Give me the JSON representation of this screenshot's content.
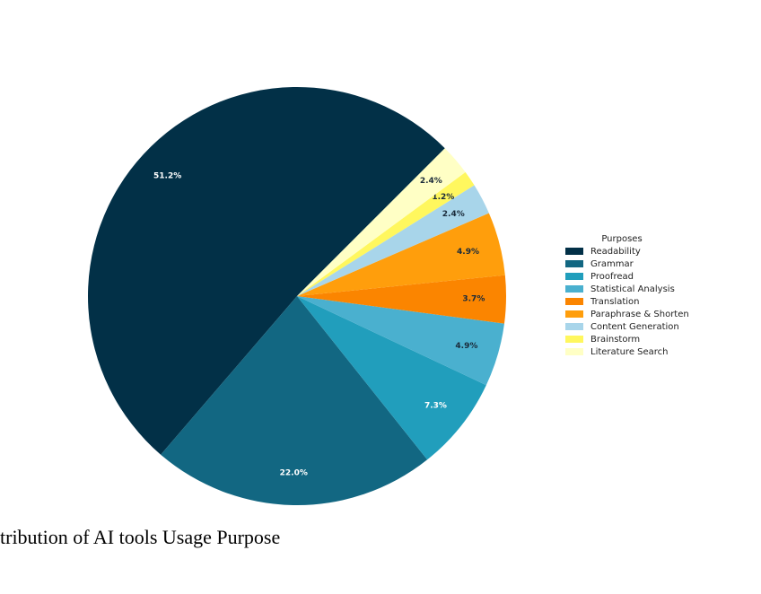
{
  "chart_data": {
    "type": "pie",
    "title": "tribution of AI tools Usage Purpose",
    "legend_title": "Purposes",
    "start_angle": 45,
    "categories": [
      "Readability",
      "Grammar",
      "Proofread",
      "Statistical Analysis",
      "Translation",
      "Paraphrase & Shorten",
      "Content Generation",
      "Brainstorm",
      "Literature Search"
    ],
    "values": [
      51.2,
      22.0,
      7.3,
      4.9,
      3.7,
      4.9,
      2.4,
      1.2,
      2.4
    ],
    "value_labels": [
      "51.2%",
      "22.0%",
      "7.3%",
      "4.9%",
      "3.7%",
      "4.9%",
      "2.4%",
      "1.2%",
      "2.4%"
    ],
    "colors": [
      "#023047",
      "#126782",
      "#219ebc",
      "#4ab0cf",
      "#fb8500",
      "#ff9e0c",
      "#a8d5ea",
      "#fff75e",
      "#ffffc5"
    ],
    "legend_position": "right"
  }
}
